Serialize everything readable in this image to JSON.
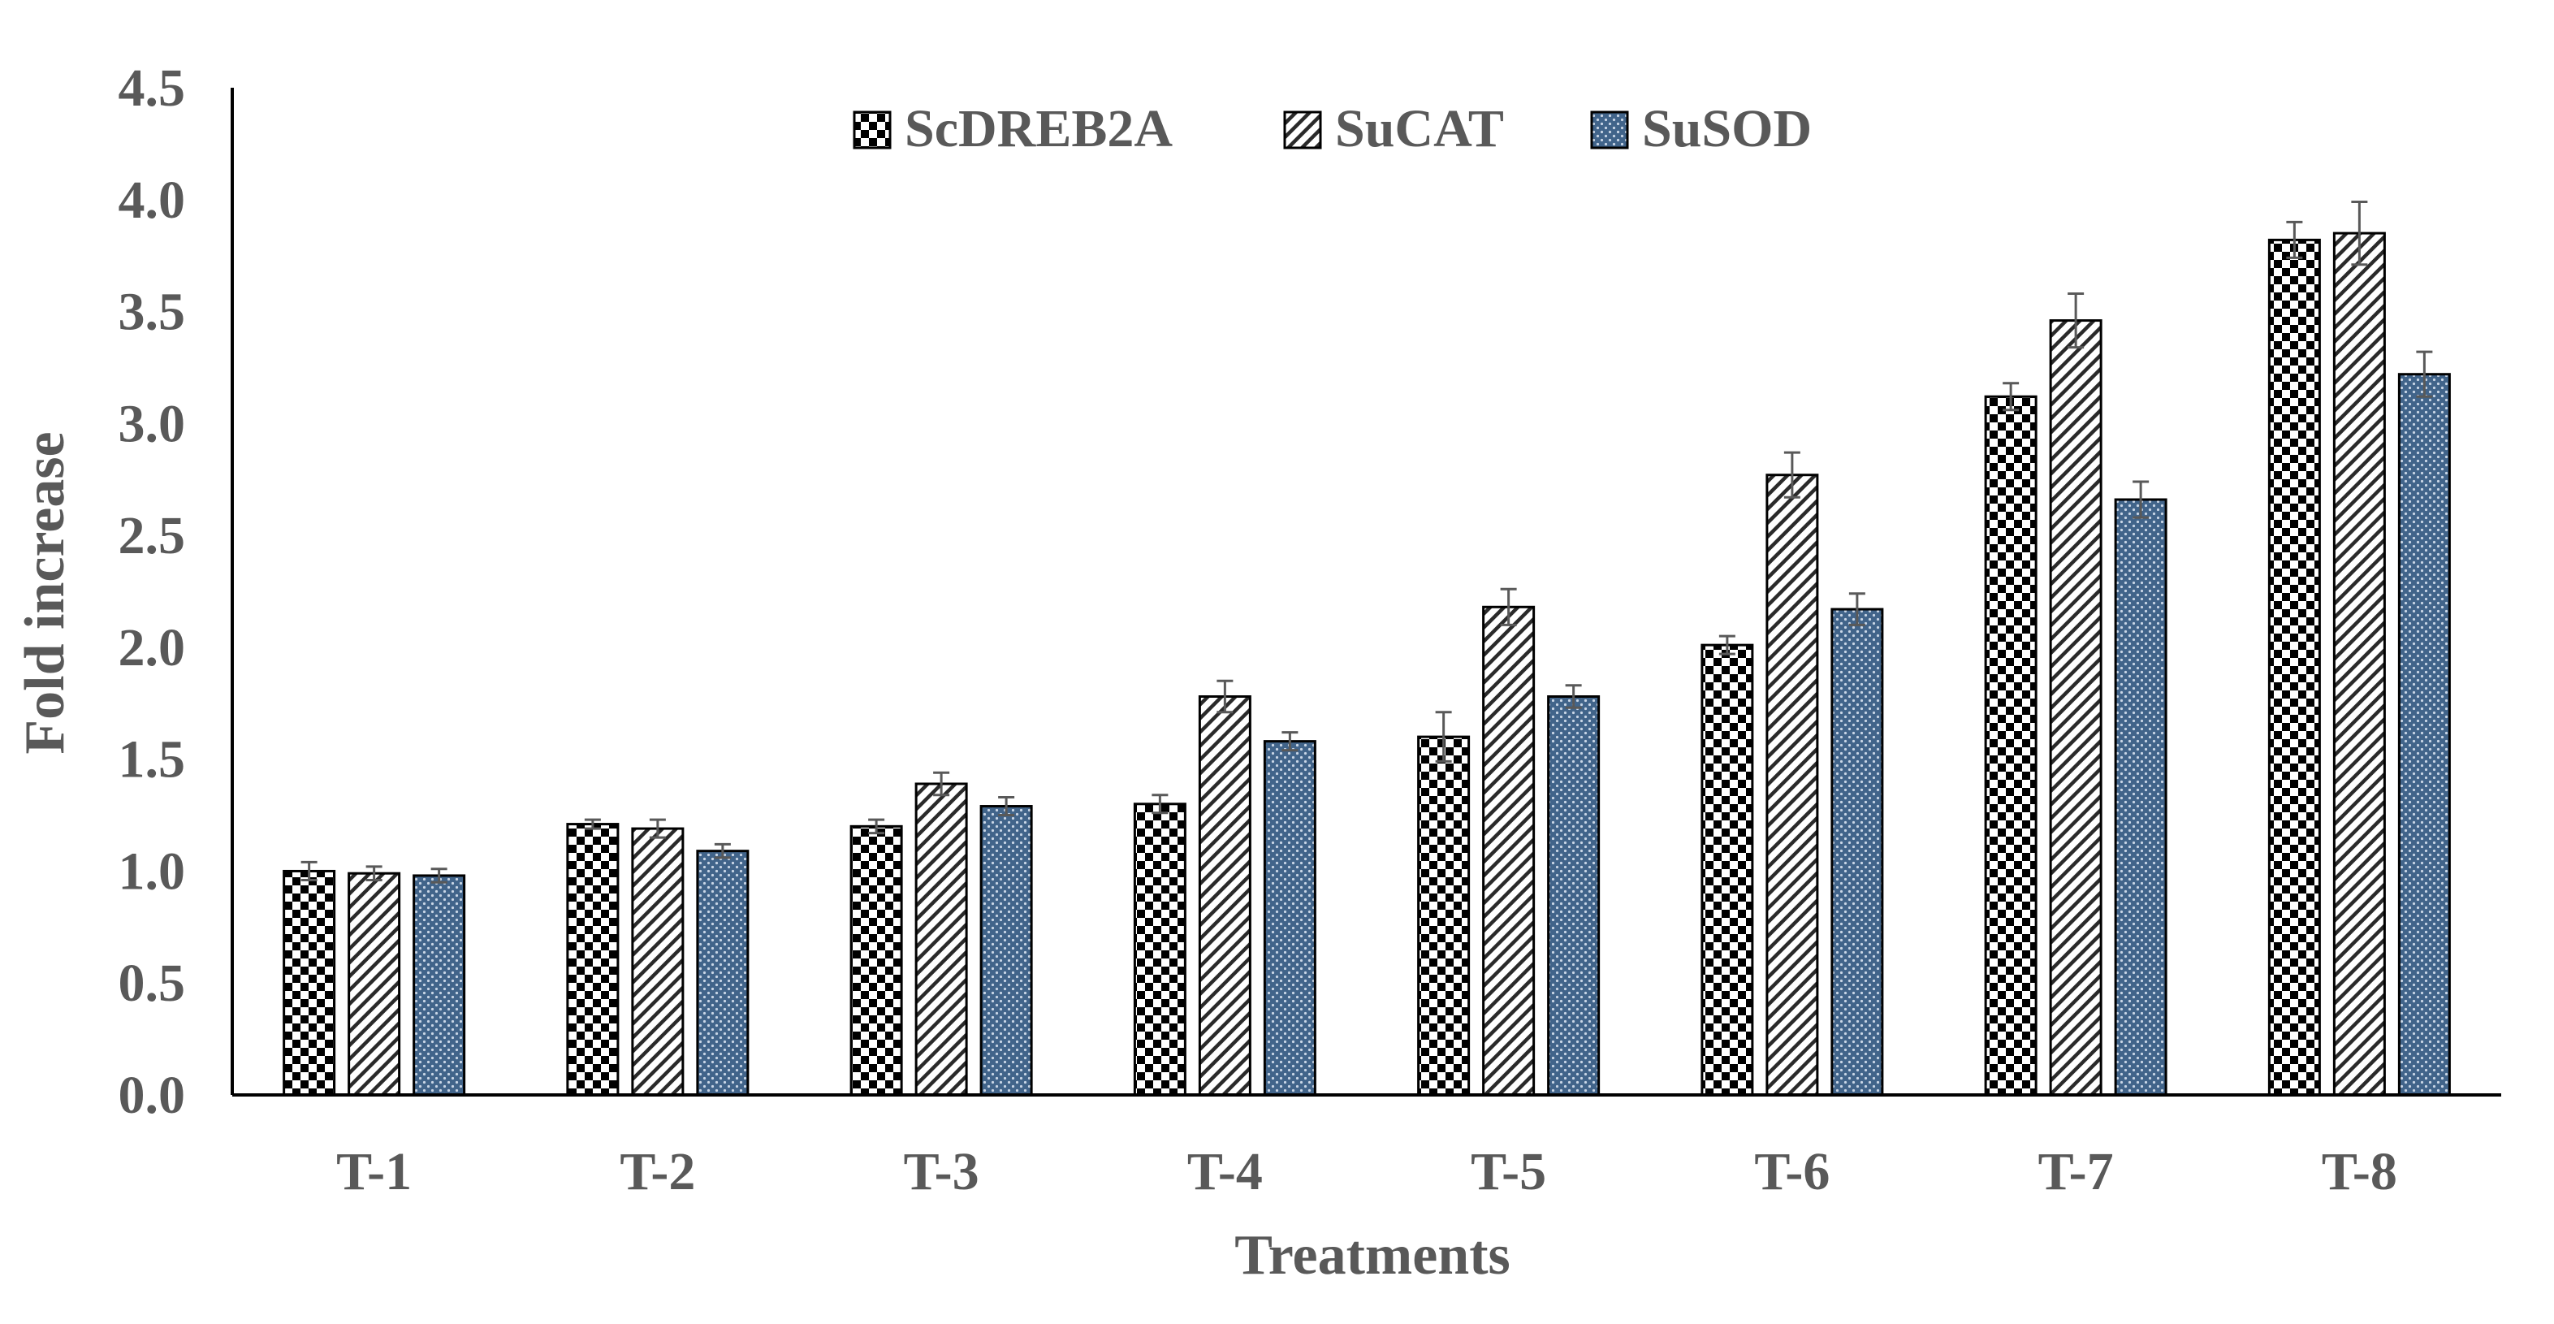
{
  "chart_data": {
    "type": "bar",
    "title": "",
    "xlabel": "Treatments",
    "ylabel": "Fold increase",
    "ylim": [
      0,
      4.5
    ],
    "yticks": [
      "0.0",
      "0.5",
      "1.0",
      "1.5",
      "2.0",
      "2.5",
      "3.0",
      "3.5",
      "4.0",
      "4.5"
    ],
    "ytick_values": [
      0,
      0.5,
      1,
      1.5,
      2,
      2.5,
      3,
      3.5,
      4,
      4.5
    ],
    "categories": [
      "T-1",
      "T-2",
      "T-3",
      "T-4",
      "T-5",
      "T-6",
      "T-7",
      "T-8"
    ],
    "grid": false,
    "legend_position": "top-center",
    "series": [
      {
        "name": "ScDREB2A",
        "pattern": "checkerboard",
        "colors": {
          "fill": "#000000",
          "alt": "#ffffff"
        },
        "values": [
          1.0,
          1.21,
          1.2,
          1.3,
          1.6,
          2.01,
          3.12,
          3.82
        ],
        "errors": [
          0.04,
          0.02,
          0.03,
          0.04,
          0.11,
          0.04,
          0.06,
          0.08
        ]
      },
      {
        "name": "SuCAT",
        "pattern": "diagonal-hatch",
        "colors": {
          "fill": "#000000",
          "alt": "#ffffff"
        },
        "values": [
          0.99,
          1.19,
          1.39,
          1.78,
          2.18,
          2.77,
          3.46,
          3.85
        ],
        "errors": [
          0.03,
          0.04,
          0.05,
          0.07,
          0.08,
          0.1,
          0.12,
          0.14
        ]
      },
      {
        "name": "SuSOD",
        "pattern": "dotted-blue",
        "colors": {
          "fill": "#41648a",
          "alt": "#ffffff"
        },
        "values": [
          0.98,
          1.09,
          1.29,
          1.58,
          1.78,
          2.17,
          2.66,
          3.22
        ],
        "errors": [
          0.03,
          0.03,
          0.04,
          0.04,
          0.05,
          0.07,
          0.08,
          0.1
        ]
      }
    ]
  }
}
